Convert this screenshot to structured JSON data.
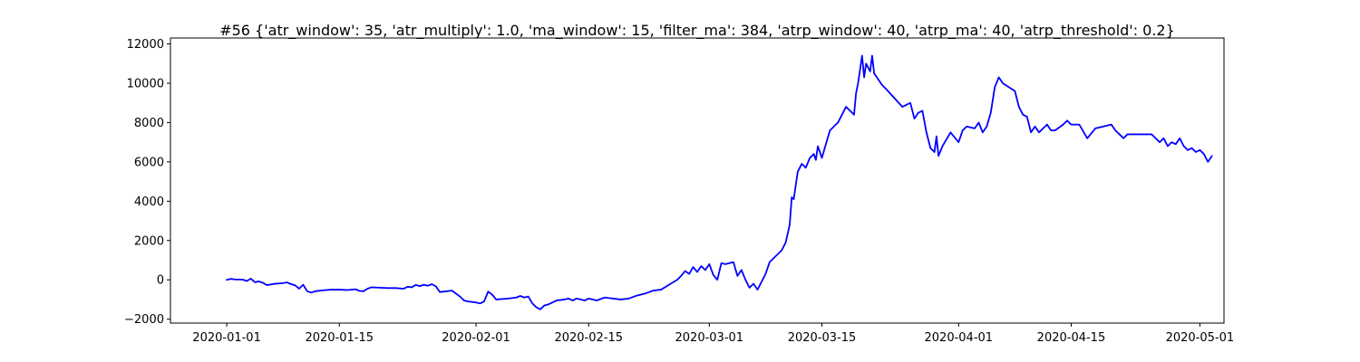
{
  "chart_data": {
    "type": "line",
    "title": "#56 {'atr_window': 35, 'atr_multiply': 1.0, 'ma_window': 15, 'filter_ma': 384, 'atrp_window': 40, 'atrp_ma': 40, 'atrp_threshold': 0.2}",
    "xlabel": "",
    "ylabel": "",
    "x_axis_type": "date",
    "xlim": [
      "2019-12-25",
      "2020-05-04"
    ],
    "ylim": [
      -2200,
      12300
    ],
    "x_ticks": [
      "2020-01-01",
      "2020-01-15",
      "2020-02-01",
      "2020-02-15",
      "2020-03-01",
      "2020-03-15",
      "2020-04-01",
      "2020-04-15",
      "2020-05-01"
    ],
    "y_ticks": [
      -2000,
      0,
      2000,
      4000,
      6000,
      8000,
      10000,
      12000
    ],
    "y_tick_labels": [
      "−2000",
      "0",
      "2000",
      "4000",
      "6000",
      "8000",
      "10000",
      "12000"
    ],
    "grid": false,
    "legend": "none",
    "series": [
      {
        "color": "#0000ff",
        "points": [
          [
            "2020-01-01",
            0
          ],
          [
            "2020-01-01 12:00",
            50
          ],
          [
            "2020-01-02",
            20
          ],
          [
            "2020-01-03",
            10
          ],
          [
            "2020-01-03 12:00",
            -60
          ],
          [
            "2020-01-04",
            60
          ],
          [
            "2020-01-04 12:00",
            -120
          ],
          [
            "2020-01-05",
            -80
          ],
          [
            "2020-01-05 12:00",
            -150
          ],
          [
            "2020-01-06",
            -270
          ],
          [
            "2020-01-07",
            -200
          ],
          [
            "2020-01-08",
            -170
          ],
          [
            "2020-01-08 12:00",
            -130
          ],
          [
            "2020-01-09",
            -220
          ],
          [
            "2020-01-09 12:00",
            -280
          ],
          [
            "2020-01-10",
            -450
          ],
          [
            "2020-01-10 12:00",
            -250
          ],
          [
            "2020-01-11",
            -580
          ],
          [
            "2020-01-11 12:00",
            -650
          ],
          [
            "2020-01-12",
            -580
          ],
          [
            "2020-01-13",
            -530
          ],
          [
            "2020-01-14",
            -500
          ],
          [
            "2020-01-15",
            -500
          ],
          [
            "2020-01-16",
            -520
          ],
          [
            "2020-01-17",
            -480
          ],
          [
            "2020-01-17 12:00",
            -560
          ],
          [
            "2020-01-18",
            -580
          ],
          [
            "2020-01-18 12:00",
            -450
          ],
          [
            "2020-01-19",
            -380
          ],
          [
            "2020-01-20",
            -400
          ],
          [
            "2020-01-21",
            -420
          ],
          [
            "2020-01-22",
            -420
          ],
          [
            "2020-01-23",
            -450
          ],
          [
            "2020-01-23 12:00",
            -350
          ],
          [
            "2020-01-24",
            -380
          ],
          [
            "2020-01-24 12:00",
            -260
          ],
          [
            "2020-01-25",
            -320
          ],
          [
            "2020-01-25 12:00",
            -250
          ],
          [
            "2020-01-26",
            -300
          ],
          [
            "2020-01-26 12:00",
            -220
          ],
          [
            "2020-01-27",
            -330
          ],
          [
            "2020-01-27 12:00",
            -620
          ],
          [
            "2020-01-29",
            -550
          ],
          [
            "2020-01-30",
            -850
          ],
          [
            "2020-01-30 12:00",
            -1050
          ],
          [
            "2020-01-31",
            -1100
          ],
          [
            "2020-02-01",
            -1150
          ],
          [
            "2020-02-01 12:00",
            -1200
          ],
          [
            "2020-02-02",
            -1100
          ],
          [
            "2020-02-02 12:00",
            -600
          ],
          [
            "2020-02-03",
            -750
          ],
          [
            "2020-02-03 12:00",
            -1000
          ],
          [
            "2020-02-05",
            -950
          ],
          [
            "2020-02-06",
            -900
          ],
          [
            "2020-02-06 12:00",
            -820
          ],
          [
            "2020-02-07",
            -900
          ],
          [
            "2020-02-07 12:00",
            -850
          ],
          [
            "2020-02-08",
            -1200
          ],
          [
            "2020-02-08 12:00",
            -1400
          ],
          [
            "2020-02-09",
            -1500
          ],
          [
            "2020-02-09 12:00",
            -1300
          ],
          [
            "2020-02-10",
            -1250
          ],
          [
            "2020-02-11",
            -1050
          ],
          [
            "2020-02-12",
            -1000
          ],
          [
            "2020-02-12 12:00",
            -950
          ],
          [
            "2020-02-13",
            -1050
          ],
          [
            "2020-02-13 12:00",
            -950
          ],
          [
            "2020-02-14",
            -1000
          ],
          [
            "2020-02-14 12:00",
            -1050
          ],
          [
            "2020-02-15",
            -950
          ],
          [
            "2020-02-16",
            -1050
          ],
          [
            "2020-02-17",
            -900
          ],
          [
            "2020-02-18",
            -950
          ],
          [
            "2020-02-19",
            -1000
          ],
          [
            "2020-02-20",
            -950
          ],
          [
            "2020-02-21",
            -800
          ],
          [
            "2020-02-22",
            -700
          ],
          [
            "2020-02-23",
            -550
          ],
          [
            "2020-02-24",
            -500
          ],
          [
            "2020-02-25",
            -250
          ],
          [
            "2020-02-26",
            0
          ],
          [
            "2020-02-26 12:00",
            200
          ],
          [
            "2020-02-27",
            450
          ],
          [
            "2020-02-27 12:00",
            300
          ],
          [
            "2020-02-28",
            650
          ],
          [
            "2020-02-28 12:00",
            400
          ],
          [
            "2020-02-29",
            700
          ],
          [
            "2020-02-29 12:00",
            500
          ],
          [
            "2020-03-01",
            800
          ],
          [
            "2020-03-01 12:00",
            250
          ],
          [
            "2020-03-02",
            0
          ],
          [
            "2020-03-02 12:00",
            850
          ],
          [
            "2020-03-03",
            800
          ],
          [
            "2020-03-04",
            900
          ],
          [
            "2020-03-04 12:00",
            200
          ],
          [
            "2020-03-05",
            500
          ],
          [
            "2020-03-05 12:00",
            0
          ],
          [
            "2020-03-06",
            -400
          ],
          [
            "2020-03-06 12:00",
            -200
          ],
          [
            "2020-03-07",
            -500
          ],
          [
            "2020-03-07 12:00",
            -100
          ],
          [
            "2020-03-08",
            300
          ],
          [
            "2020-03-08 12:00",
            900
          ],
          [
            "2020-03-10",
            1500
          ],
          [
            "2020-03-10 12:00",
            1900
          ],
          [
            "2020-03-11",
            2800
          ],
          [
            "2020-03-11 06:00",
            4200
          ],
          [
            "2020-03-11 12:00",
            4100
          ],
          [
            "2020-03-12",
            5500
          ],
          [
            "2020-03-12 12:00",
            5900
          ],
          [
            "2020-03-13",
            5700
          ],
          [
            "2020-03-13 12:00",
            6200
          ],
          [
            "2020-03-14",
            6400
          ],
          [
            "2020-03-14 06:00",
            6100
          ],
          [
            "2020-03-14 12:00",
            6800
          ],
          [
            "2020-03-15",
            6200
          ],
          [
            "2020-03-15 12:00",
            6900
          ],
          [
            "2020-03-16",
            7600
          ],
          [
            "2020-03-17",
            8000
          ],
          [
            "2020-03-18",
            8800
          ],
          [
            "2020-03-19",
            8400
          ],
          [
            "2020-03-19 06:00",
            9500
          ],
          [
            "2020-03-19 12:00",
            10000
          ],
          [
            "2020-03-20",
            11400
          ],
          [
            "2020-03-20 06:00",
            10300
          ],
          [
            "2020-03-20 12:00",
            11000
          ],
          [
            "2020-03-21",
            10600
          ],
          [
            "2020-03-21 06:00",
            11400
          ],
          [
            "2020-03-21 12:00",
            10500
          ],
          [
            "2020-03-22",
            10200
          ],
          [
            "2020-03-22 12:00",
            9900
          ],
          [
            "2020-03-23",
            9700
          ],
          [
            "2020-03-25",
            8800
          ],
          [
            "2020-03-26",
            9000
          ],
          [
            "2020-03-26 12:00",
            8200
          ],
          [
            "2020-03-27",
            8500
          ],
          [
            "2020-03-27 12:00",
            8600
          ],
          [
            "2020-03-28",
            7500
          ],
          [
            "2020-03-28 12:00",
            6700
          ],
          [
            "2020-03-29",
            6500
          ],
          [
            "2020-03-29 06:00",
            7300
          ],
          [
            "2020-03-29 12:00",
            6300
          ],
          [
            "2020-03-30",
            6800
          ],
          [
            "2020-03-31",
            7500
          ],
          [
            "2020-04-01",
            7000
          ],
          [
            "2020-04-01 12:00",
            7600
          ],
          [
            "2020-04-02",
            7800
          ],
          [
            "2020-04-03",
            7700
          ],
          [
            "2020-04-03 12:00",
            8000
          ],
          [
            "2020-04-04",
            7500
          ],
          [
            "2020-04-04 12:00",
            7800
          ],
          [
            "2020-04-05",
            8500
          ],
          [
            "2020-04-05 12:00",
            9800
          ],
          [
            "2020-04-06",
            10300
          ],
          [
            "2020-04-06 12:00",
            10000
          ],
          [
            "2020-04-08",
            9600
          ],
          [
            "2020-04-08 12:00",
            8800
          ],
          [
            "2020-04-09",
            8400
          ],
          [
            "2020-04-09 12:00",
            8300
          ],
          [
            "2020-04-10",
            7500
          ],
          [
            "2020-04-10 12:00",
            7800
          ],
          [
            "2020-04-11",
            7500
          ],
          [
            "2020-04-12",
            7900
          ],
          [
            "2020-04-12 12:00",
            7600
          ],
          [
            "2020-04-13",
            7600
          ],
          [
            "2020-04-14",
            7900
          ],
          [
            "2020-04-14 12:00",
            8100
          ],
          [
            "2020-04-15",
            7900
          ],
          [
            "2020-04-16",
            7900
          ],
          [
            "2020-04-17",
            7200
          ],
          [
            "2020-04-18",
            7700
          ],
          [
            "2020-04-19",
            7800
          ],
          [
            "2020-04-20",
            7900
          ],
          [
            "2020-04-20 12:00",
            7600
          ],
          [
            "2020-04-21",
            7400
          ],
          [
            "2020-04-21 12:00",
            7200
          ],
          [
            "2020-04-22",
            7400
          ],
          [
            "2020-04-25",
            7400
          ],
          [
            "2020-04-26",
            7000
          ],
          [
            "2020-04-26 12:00",
            7200
          ],
          [
            "2020-04-27",
            6800
          ],
          [
            "2020-04-27 12:00",
            7000
          ],
          [
            "2020-04-28",
            6900
          ],
          [
            "2020-04-28 12:00",
            7200
          ],
          [
            "2020-04-29",
            6800
          ],
          [
            "2020-04-29 12:00",
            6600
          ],
          [
            "2020-04-30",
            6700
          ],
          [
            "2020-04-30 12:00",
            6500
          ],
          [
            "2020-05-01",
            6600
          ],
          [
            "2020-05-01 12:00",
            6400
          ],
          [
            "2020-05-02",
            6000
          ],
          [
            "2020-05-02 12:00",
            6300
          ]
        ]
      }
    ]
  }
}
